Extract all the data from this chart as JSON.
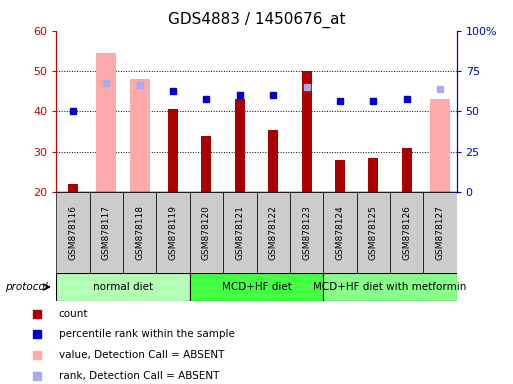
{
  "title": "GDS4883 / 1450676_at",
  "samples": [
    "GSM878116",
    "GSM878117",
    "GSM878118",
    "GSM878119",
    "GSM878120",
    "GSM878121",
    "GSM878122",
    "GSM878123",
    "GSM878124",
    "GSM878125",
    "GSM878126",
    "GSM878127"
  ],
  "count_values": [
    22,
    null,
    null,
    40.5,
    34,
    43,
    35.5,
    50,
    28,
    28.5,
    31,
    null
  ],
  "value_absent": [
    null,
    54.5,
    48,
    null,
    null,
    null,
    null,
    null,
    null,
    null,
    null,
    43
  ],
  "percentile_rank_left": [
    40,
    null,
    null,
    45,
    43,
    44,
    44,
    null,
    42.5,
    42.5,
    43,
    null
  ],
  "rank_absent_left": [
    null,
    47,
    46.5,
    null,
    null,
    null,
    null,
    46,
    null,
    null,
    null,
    45.5
  ],
  "ylim_left": [
    20,
    60
  ],
  "ylim_right": [
    0,
    100
  ],
  "yticks_left": [
    20,
    30,
    40,
    50,
    60
  ],
  "yticks_right": [
    0,
    25,
    50,
    75,
    100
  ],
  "ytick_labels_right": [
    "0",
    "25",
    "50",
    "75",
    "100%"
  ],
  "groups": [
    {
      "label": "normal diet",
      "start": 0,
      "end": 3,
      "color": "#b3ffb3"
    },
    {
      "label": "MCD+HF diet",
      "start": 4,
      "end": 7,
      "color": "#44ff44"
    },
    {
      "label": "MCD+HF diet with metformin",
      "start": 8,
      "end": 11,
      "color": "#88ff88"
    }
  ],
  "bar_color": "#aa0000",
  "absent_bar_color": "#ffaaaa",
  "dot_color": "#0000cc",
  "absent_dot_color": "#aaaaee",
  "background_color": "#ffffff",
  "tick_color_left": "#cc0000",
  "tick_color_right": "#0000cc",
  "sample_box_color": "#cccccc",
  "gridline_ticks": [
    30,
    40,
    50
  ]
}
